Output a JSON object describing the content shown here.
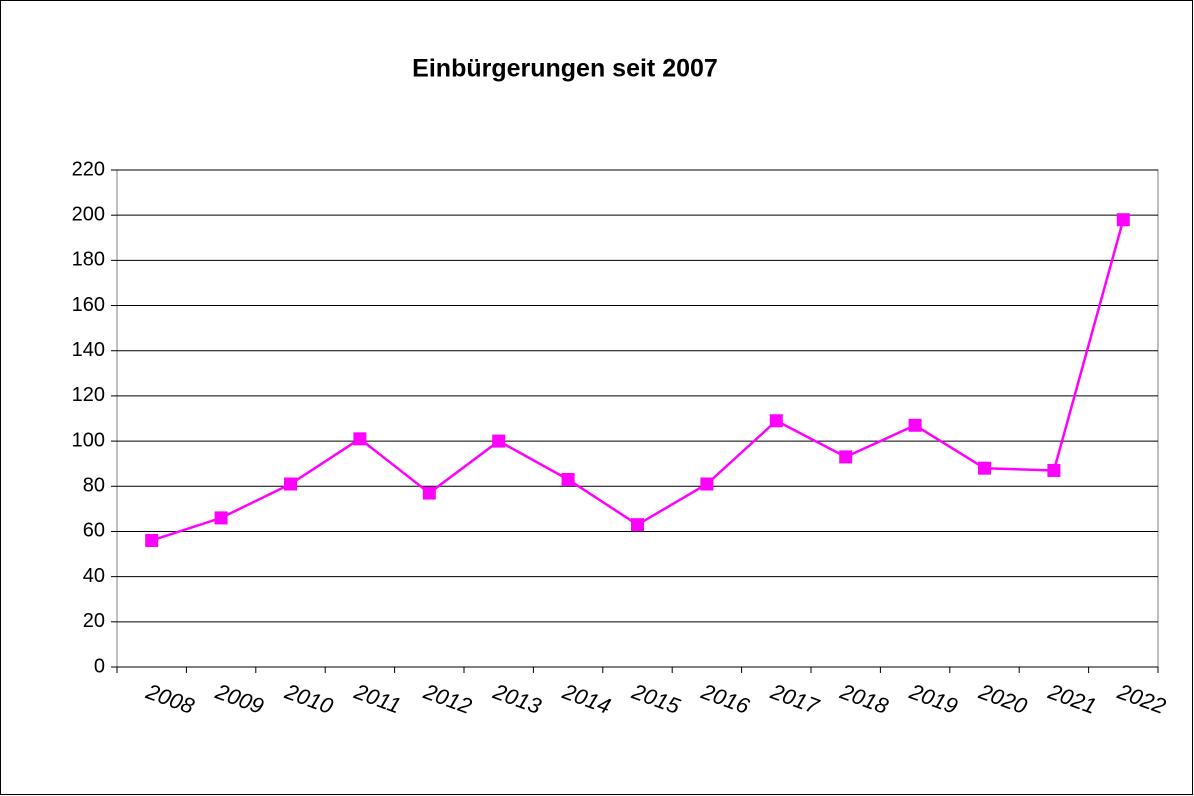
{
  "chart_data": {
    "type": "line",
    "title": "Einbürgerungen seit 2007",
    "categories": [
      "2008",
      "2009",
      "2010",
      "2011",
      "2012",
      "2013",
      "2014",
      "2015",
      "2016",
      "2017",
      "2018",
      "2019",
      "2020",
      "2021",
      "2022"
    ],
    "series": [
      {
        "name": "Einbürgerungen",
        "color": "#ff00ff",
        "values": [
          56,
          66,
          81,
          101,
          77,
          100,
          83,
          63,
          81,
          109,
          93,
          107,
          88,
          87,
          198
        ]
      }
    ],
    "ylim": [
      0,
      220
    ],
    "yticks": [
      0,
      20,
      40,
      60,
      80,
      100,
      120,
      140,
      160,
      180,
      200,
      220
    ],
    "grid": true
  }
}
